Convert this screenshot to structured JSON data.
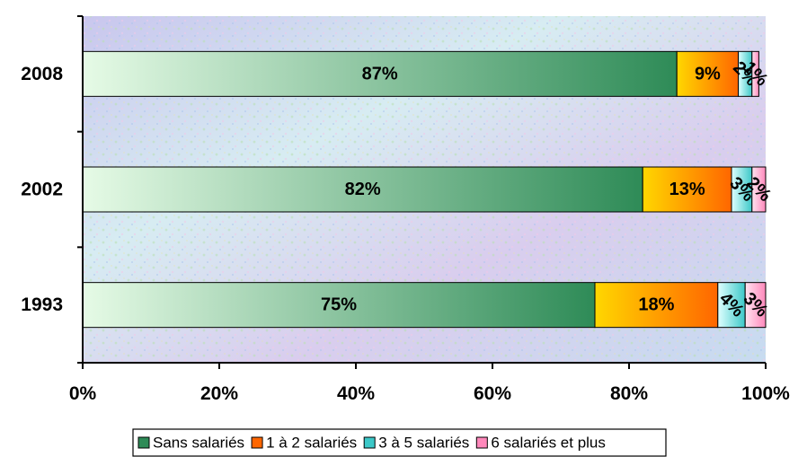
{
  "chart_data": {
    "type": "bar",
    "orientation": "horizontal",
    "stacked": "percent",
    "categories": [
      "2008",
      "2002",
      "1993"
    ],
    "series": [
      {
        "name": "Sans salariés",
        "values": [
          87,
          82,
          75
        ],
        "labels": [
          "87%",
          "82%",
          "75%"
        ],
        "color_light": "#e6fbe6",
        "color_dark": "#2e8b57"
      },
      {
        "name": "1 à 2 salariés",
        "values": [
          9,
          13,
          18
        ],
        "labels": [
          "9%",
          "13%",
          "18%"
        ],
        "color_light": "#ffd700",
        "color_dark": "#ff6600"
      },
      {
        "name": "3 à 5 salariés",
        "values": [
          2,
          3,
          4
        ],
        "labels": [
          "2%",
          "3%",
          "4%"
        ],
        "color_light": "#e0ffff",
        "color_dark": "#3cc8c8"
      },
      {
        "name": "6 salariés et plus",
        "values": [
          1,
          2,
          3
        ],
        "labels": [
          "1%",
          "2%",
          "3%"
        ],
        "color_light": "#ffe4f0",
        "color_dark": "#ff88bb"
      }
    ],
    "xticks": [
      "0%",
      "20%",
      "40%",
      "60%",
      "80%",
      "100%"
    ],
    "xlim": [
      0,
      100
    ],
    "grid": false,
    "legend_position": "bottom",
    "plot_background": "textured pastel pattern"
  }
}
